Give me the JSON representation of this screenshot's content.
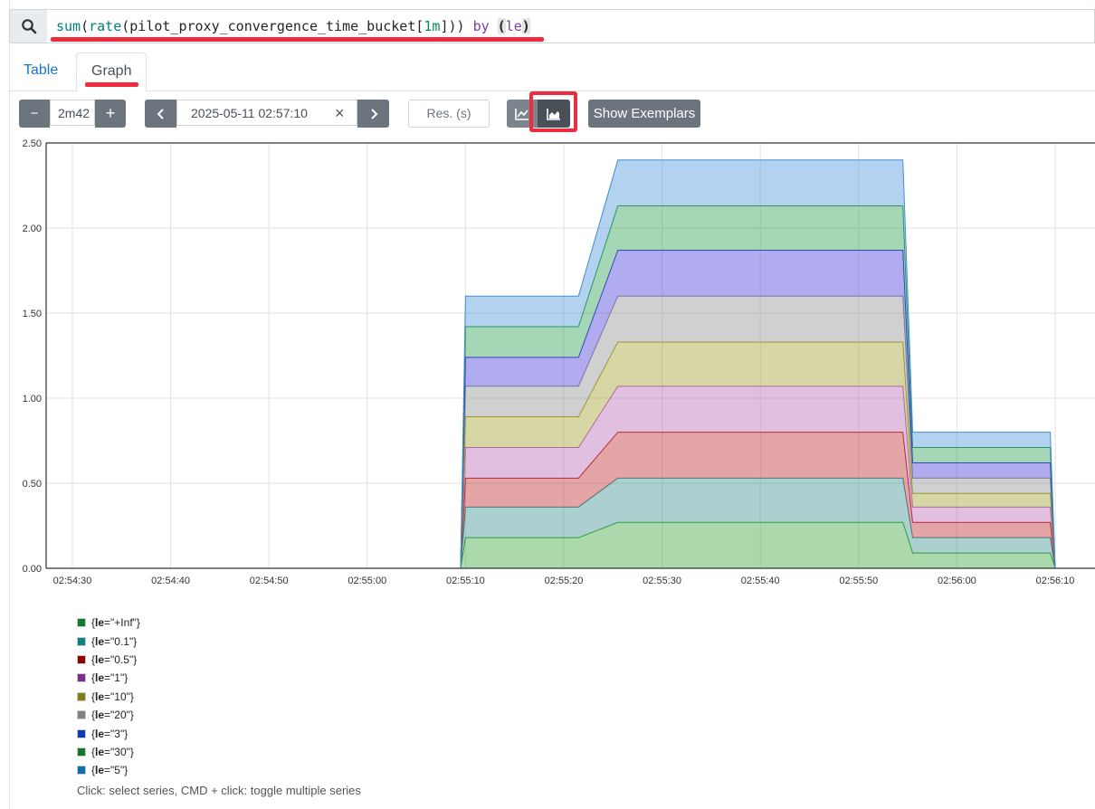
{
  "query": {
    "text": "sum(rate(pilot_proxy_convergence_time_bucket[1m])) by (le)",
    "search_icon": "search-icon"
  },
  "tabs": [
    {
      "label": "Table",
      "active": false
    },
    {
      "label": "Graph",
      "active": true
    }
  ],
  "controls": {
    "minus_label": "−",
    "range_value": "2m42",
    "plus_label": "+",
    "prev_icon": "chevron-left-icon",
    "end_time": "2025-05-11 02:57:10",
    "clear_label": "×",
    "next_icon": "chevron-right-icon",
    "resolution_placeholder": "Res. (s)",
    "line_chart_icon": "line-chart-icon",
    "stacked_chart_icon": "stacked-area-chart-icon",
    "exemplars_label": "Show Exemplars"
  },
  "chart_data": {
    "type": "area",
    "stacked": true,
    "x": [
      "02:54:30",
      "02:54:40",
      "02:54:50",
      "02:55:00",
      "02:55:10",
      "02:55:20",
      "02:55:30",
      "02:55:40",
      "02:55:50",
      "02:56:00",
      "02:56:10"
    ],
    "y_ticks": [
      "0.00",
      "0.50",
      "1.00",
      "1.50",
      "2.00",
      "2.50"
    ],
    "ylim": [
      0,
      2.5
    ],
    "grid": true,
    "legend_position": "bottom",
    "time_points": [
      "02:55:09.5",
      "02:55:10",
      "02:55:21.5",
      "02:55:25.5",
      "02:55:54.5",
      "02:55:55.5",
      "02:56:09.5",
      "02:56:10"
    ],
    "cumulative": {
      "0.1": [
        0,
        0.18,
        0.18,
        0.27,
        0.27,
        0.09,
        0.09,
        0
      ],
      "0.5": [
        0,
        0.36,
        0.36,
        0.53,
        0.53,
        0.18,
        0.18,
        0
      ],
      "1": [
        0,
        0.53,
        0.53,
        0.8,
        0.8,
        0.27,
        0.27,
        0
      ],
      "3": [
        0,
        0.71,
        0.71,
        1.07,
        1.07,
        0.36,
        0.36,
        0
      ],
      "5": [
        0,
        0.89,
        0.89,
        1.33,
        1.33,
        0.44,
        0.44,
        0
      ],
      "10": [
        0,
        1.07,
        1.07,
        1.6,
        1.6,
        0.53,
        0.53,
        0
      ],
      "20": [
        0,
        1.24,
        1.24,
        1.87,
        1.87,
        0.62,
        0.62,
        0
      ],
      "30": [
        0,
        1.42,
        1.42,
        2.13,
        2.13,
        0.71,
        0.71,
        0
      ],
      "+Inf": [
        0,
        1.6,
        1.6,
        2.4,
        2.4,
        0.8,
        0.8,
        0
      ]
    },
    "band_order": [
      "0.1",
      "0.5",
      "1",
      "3",
      "5",
      "10",
      "20",
      "30",
      "+Inf"
    ],
    "band_colors": {
      "0.1": "#2ca02c",
      "0.5": "#2f8a8a",
      "1": "#b81f1f",
      "3": "#b35fb3",
      "5": "#9c9a1f",
      "10": "#8a8a8a",
      "20": "#3a2fd6",
      "30": "#1f9a4a",
      "+Inf": "#3f8fd6"
    }
  },
  "legend": [
    {
      "label": "+Inf",
      "color": "#107a2e"
    },
    {
      "label": "0.1",
      "color": "#0f7f7f"
    },
    {
      "label": "0.5",
      "color": "#8b0000"
    },
    {
      "label": "1",
      "color": "#7b2f8b"
    },
    {
      "label": "10",
      "color": "#7f7f1a"
    },
    {
      "label": "20",
      "color": "#808080"
    },
    {
      "label": "3",
      "color": "#0b3bb0"
    },
    {
      "label": "30",
      "color": "#107a2e"
    },
    {
      "label": "5",
      "color": "#0b6fae"
    }
  ],
  "legend_key": "le",
  "hint": "Click: select series, CMD + click: toggle multiple series"
}
